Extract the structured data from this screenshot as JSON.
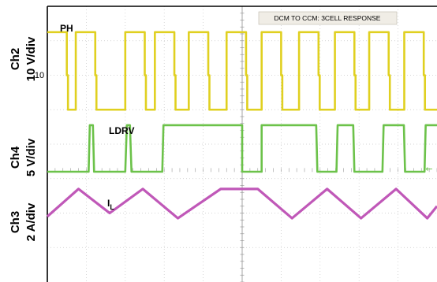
{
  "chart_data": {
    "type": "line",
    "title": "DCM TO CCM: 3CELL RESPONSE",
    "channels": [
      {
        "name": "Ch2",
        "scale": "10 V/div",
        "trace_label": "PH",
        "color": "#e0d020"
      },
      {
        "name": "Ch4",
        "scale": "5 V/div",
        "trace_label": "LDRV",
        "color": "#6cc24a"
      },
      {
        "name": "Ch3",
        "scale": "2 A/div",
        "trace_label": "I",
        "trace_label_sub": "L",
        "color": "#c058b8"
      }
    ],
    "ticks": {
      "ch2_level": "10"
    },
    "grid": true,
    "grid_divisions": {
      "x": 10,
      "y": 8
    },
    "series": [
      {
        "name": "PH",
        "unit": "div",
        "x": [
          0,
          0.5,
          0.5,
          0.53,
          0.53,
          0.73,
          0.73,
          1.23,
          1.23,
          1.26,
          1.26,
          2.0,
          2.0,
          2.5,
          2.5,
          2.53,
          2.53,
          2.76,
          2.76,
          3.26,
          3.26,
          3.29,
          3.29,
          3.63,
          3.63,
          4.13,
          4.13,
          4.16,
          4.16,
          4.6,
          4.6,
          5.1,
          5.1,
          5.13,
          5.13,
          5.5,
          5.5,
          6.0,
          6.0,
          6.03,
          6.03,
          6.46,
          6.46,
          6.96,
          6.96,
          6.99,
          6.99,
          7.38,
          7.38,
          7.88,
          7.88,
          7.91,
          7.91,
          8.26,
          8.26,
          8.76,
          8.76,
          8.79,
          8.79,
          9.16,
          9.16,
          9.66,
          9.66,
          9.69,
          9.69,
          10
        ],
        "y": [
          7.25,
          7.25,
          6.0,
          6.0,
          5.0,
          5.0,
          7.25,
          7.25,
          6.0,
          6.0,
          5.0,
          5.0,
          7.25,
          7.25,
          6.0,
          6.0,
          5.0,
          5.0,
          7.25,
          7.25,
          6.0,
          6.0,
          5.0,
          5.0,
          7.25,
          7.25,
          6.0,
          6.0,
          5.0,
          5.0,
          7.25,
          7.25,
          6.0,
          6.0,
          5.0,
          5.0,
          7.25,
          7.25,
          6.0,
          6.0,
          5.0,
          5.0,
          7.25,
          7.25,
          6.0,
          6.0,
          5.0,
          5.0,
          7.25,
          7.25,
          6.0,
          6.0,
          5.0,
          5.0,
          7.25,
          7.25,
          6.0,
          6.0,
          5.0,
          5.0,
          7.25,
          7.25,
          6.0,
          6.0,
          5.0,
          5.0
        ]
      },
      {
        "name": "LDRV",
        "unit": "div",
        "x": [
          0,
          1.06,
          1.09,
          1.17,
          1.2,
          2.0,
          2.04,
          2.12,
          2.16,
          2.95,
          2.98,
          5.0,
          5.0,
          5.5,
          5.5,
          6.9,
          6.93,
          7.42,
          7.45,
          7.85,
          7.88,
          8.6,
          8.63,
          9.15,
          9.18,
          9.68,
          9.71,
          10
        ],
        "y": [
          3.2,
          3.2,
          4.55,
          4.55,
          3.2,
          3.2,
          4.55,
          4.55,
          3.2,
          3.2,
          4.55,
          4.55,
          3.2,
          3.2,
          4.55,
          4.55,
          3.2,
          3.2,
          4.55,
          4.55,
          3.2,
          3.2,
          4.55,
          4.55,
          3.2,
          3.2,
          4.55,
          4.55
        ]
      },
      {
        "name": "I",
        "unit": "div",
        "x": [
          0,
          0.8,
          1.6,
          2.45,
          3.35,
          4.45,
          5.4,
          6.28,
          7.18,
          8.05,
          8.95,
          9.75,
          10
        ],
        "y": [
          1.9,
          2.7,
          2.0,
          2.7,
          1.85,
          2.7,
          2.7,
          1.85,
          2.7,
          1.85,
          2.7,
          1.85,
          2.2
        ]
      }
    ]
  }
}
